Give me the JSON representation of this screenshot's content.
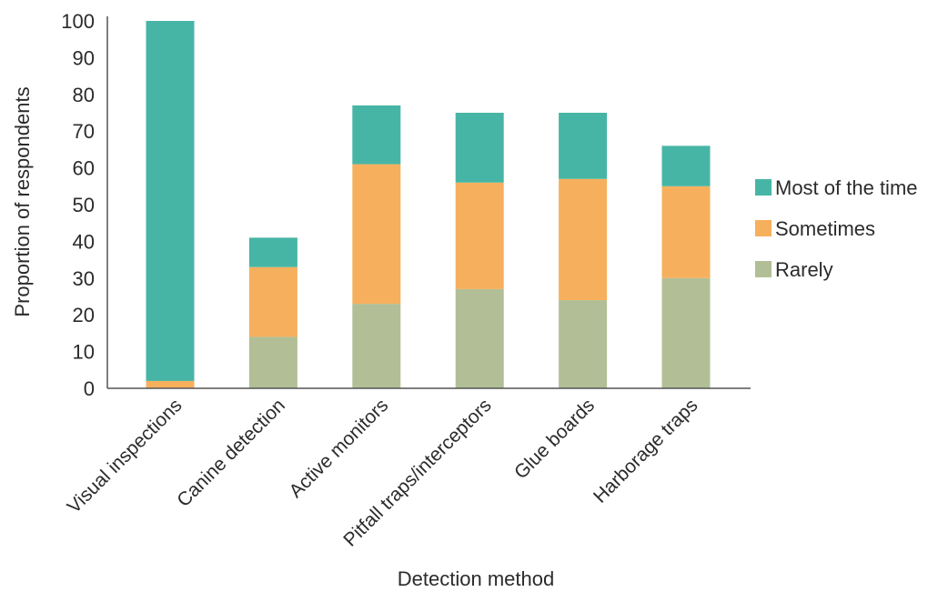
{
  "chart_data": {
    "type": "bar",
    "stacked": true,
    "categories": [
      "Visual inspections",
      "Canine detection",
      "Active monitors",
      "Pitfall traps/interceptors",
      "Glue boards",
      "Harborage traps"
    ],
    "series": [
      {
        "name": "Rarely",
        "values": [
          0,
          14,
          23,
          27,
          24,
          30
        ],
        "color": "#b2bf96"
      },
      {
        "name": "Sometimes",
        "values": [
          2,
          19,
          38,
          29,
          33,
          25
        ],
        "color": "#f6b05d"
      },
      {
        "name": "Most of the time",
        "values": [
          98,
          8,
          16,
          19,
          18,
          11
        ],
        "color": "#47b5a5"
      }
    ],
    "legend_order": [
      "Most of the time",
      "Sometimes",
      "Rarely"
    ],
    "legend_position": "right",
    "xlabel": "Detection method",
    "ylabel": "Proportion of respondents",
    "ylim": [
      0,
      100
    ],
    "yticks": [
      0,
      10,
      20,
      30,
      40,
      50,
      60,
      70,
      80,
      90,
      100
    ],
    "grid": false
  }
}
